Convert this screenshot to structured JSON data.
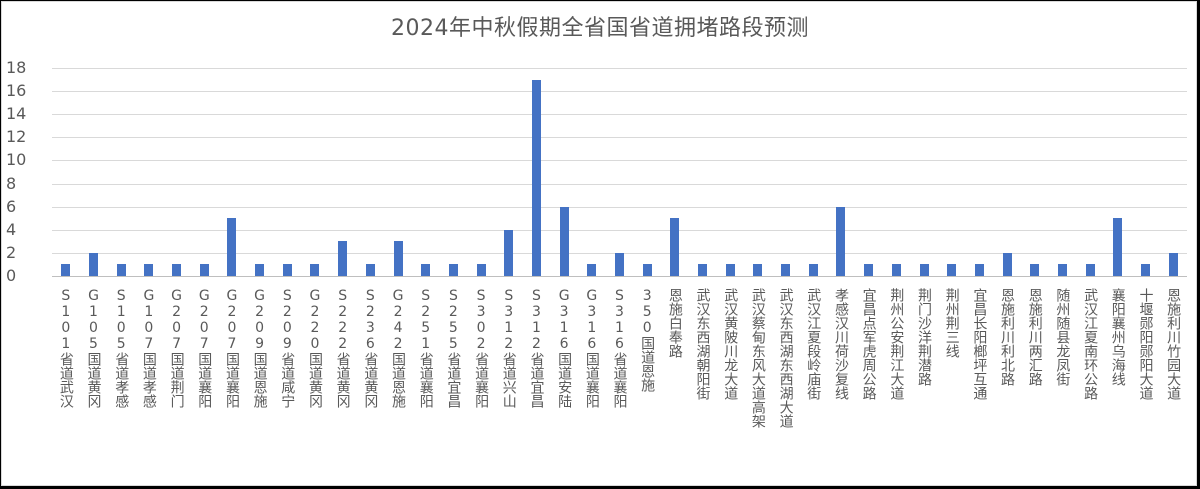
{
  "chart_data": {
    "type": "bar",
    "title": "2024年中秋假期全省国省道拥堵路段预测",
    "xlabel": "",
    "ylabel": "",
    "ylim": [
      0,
      18
    ],
    "yticks": [
      0,
      2,
      4,
      6,
      8,
      10,
      12,
      14,
      16,
      18
    ],
    "grid": true,
    "legend": null,
    "bar_color": "#4472c4",
    "categories": [
      "S101省道武汉",
      "G105国道黄冈",
      "S105省道孝感",
      "G107国道孝感",
      "G207国道荆门",
      "G207国道襄阳",
      "G207国道襄阳",
      "G209国道恩施",
      "S209省道咸宁",
      "G220国道黄冈",
      "S222省道黄冈",
      "S236省道黄冈",
      "G242国道恩施",
      "S251省道襄阳",
      "S255省道宜昌",
      "S302省道襄阳",
      "S312省道兴山",
      "S312省道宜昌",
      "G316国道安陆",
      "G316国道襄阳",
      "S316省道襄阳",
      "350国道恩施",
      "恩施白奉路",
      "武汉东西湖朝阳街",
      "武汉黄陂川龙大道",
      "武汉蔡甸东风大道高架",
      "武汉东西湖东西湖大道",
      "武汉江夏段岭庙街",
      "孝感汉川荷沙复线",
      "宜昌点军虎周公路",
      "荆州公安荆江大道",
      "荆门沙洋荆潜路",
      "荆州荆三线",
      "宜昌长阳榔坪互通",
      "恩施利川利北路",
      "恩施利川两汇路",
      "随州随县龙凤街",
      "武汉江夏南环公路",
      "襄阳襄州乌海线",
      "十堰郧阳郧阳大道",
      "恩施利川竹园大道"
    ],
    "values": [
      1,
      2,
      1,
      1,
      1,
      1,
      5,
      1,
      1,
      1,
      3,
      1,
      3,
      1,
      1,
      1,
      4,
      17,
      6,
      1,
      2,
      1,
      5,
      1,
      1,
      1,
      1,
      1,
      6,
      1,
      1,
      1,
      1,
      1,
      2,
      1,
      1,
      1,
      5,
      1,
      2
    ]
  }
}
